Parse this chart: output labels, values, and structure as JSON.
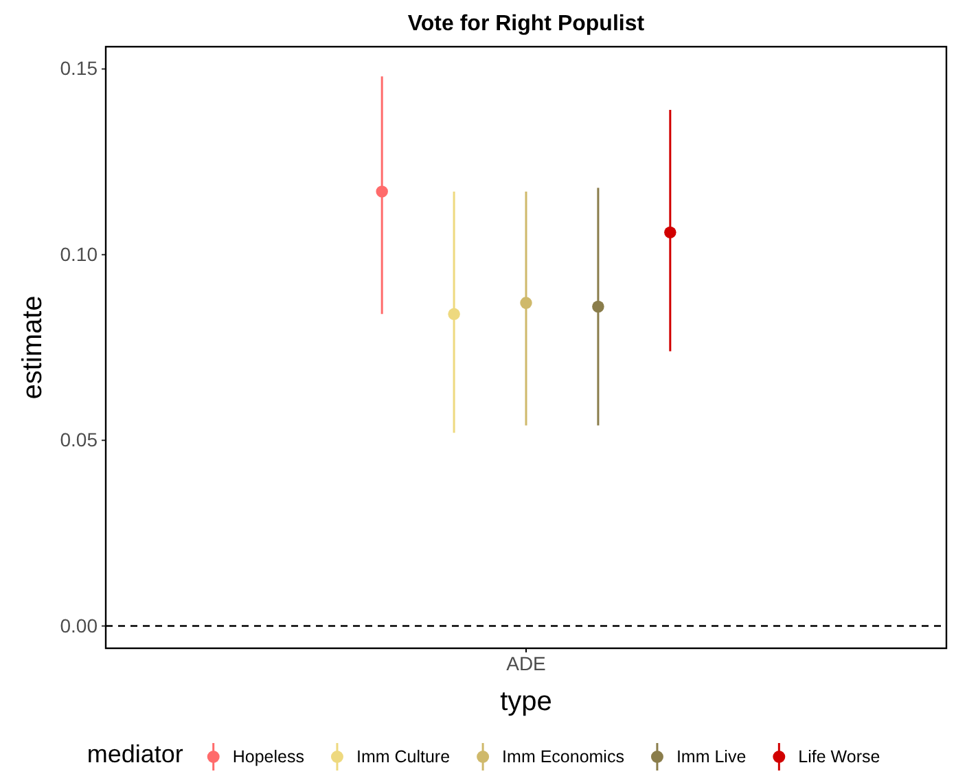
{
  "chart_data": {
    "type": "scatter",
    "title": "Vote for Right Populist",
    "xlabel": "type",
    "ylabel": "estimate",
    "legend_title": "mediator",
    "categories": [
      "ADE"
    ],
    "series": [
      {
        "name": "Hopeless",
        "color": "#ff6b6b",
        "values": [
          0.117
        ],
        "errors": [
          [
            0.084,
            0.148
          ]
        ]
      },
      {
        "name": "Imm Culture",
        "color": "#eed97f",
        "values": [
          0.084
        ],
        "errors": [
          [
            0.052,
            0.117
          ]
        ]
      },
      {
        "name": "Imm Economics",
        "color": "#cfb96b",
        "values": [
          0.087
        ],
        "errors": [
          [
            0.054,
            0.117
          ]
        ]
      },
      {
        "name": "Imm Live",
        "color": "#8a7d4b",
        "values": [
          0.086
        ],
        "errors": [
          [
            0.054,
            0.118
          ]
        ]
      },
      {
        "name": "Life Worse",
        "color": "#d10000",
        "values": [
          0.106
        ],
        "errors": [
          [
            0.074,
            0.139
          ]
        ]
      }
    ],
    "ylim": [
      -0.006,
      0.156
    ],
    "yticks": [
      {
        "value": 0,
        "label": "0.00"
      },
      0.05,
      {
        "value": 0.1,
        "label": "0.10"
      },
      0.15
    ],
    "ref_lines": [
      {
        "axis": "y",
        "value": 0,
        "line_style": "dashed",
        "color": "#000000"
      }
    ],
    "grid": false,
    "legend": "bottom",
    "marker": "circle"
  }
}
